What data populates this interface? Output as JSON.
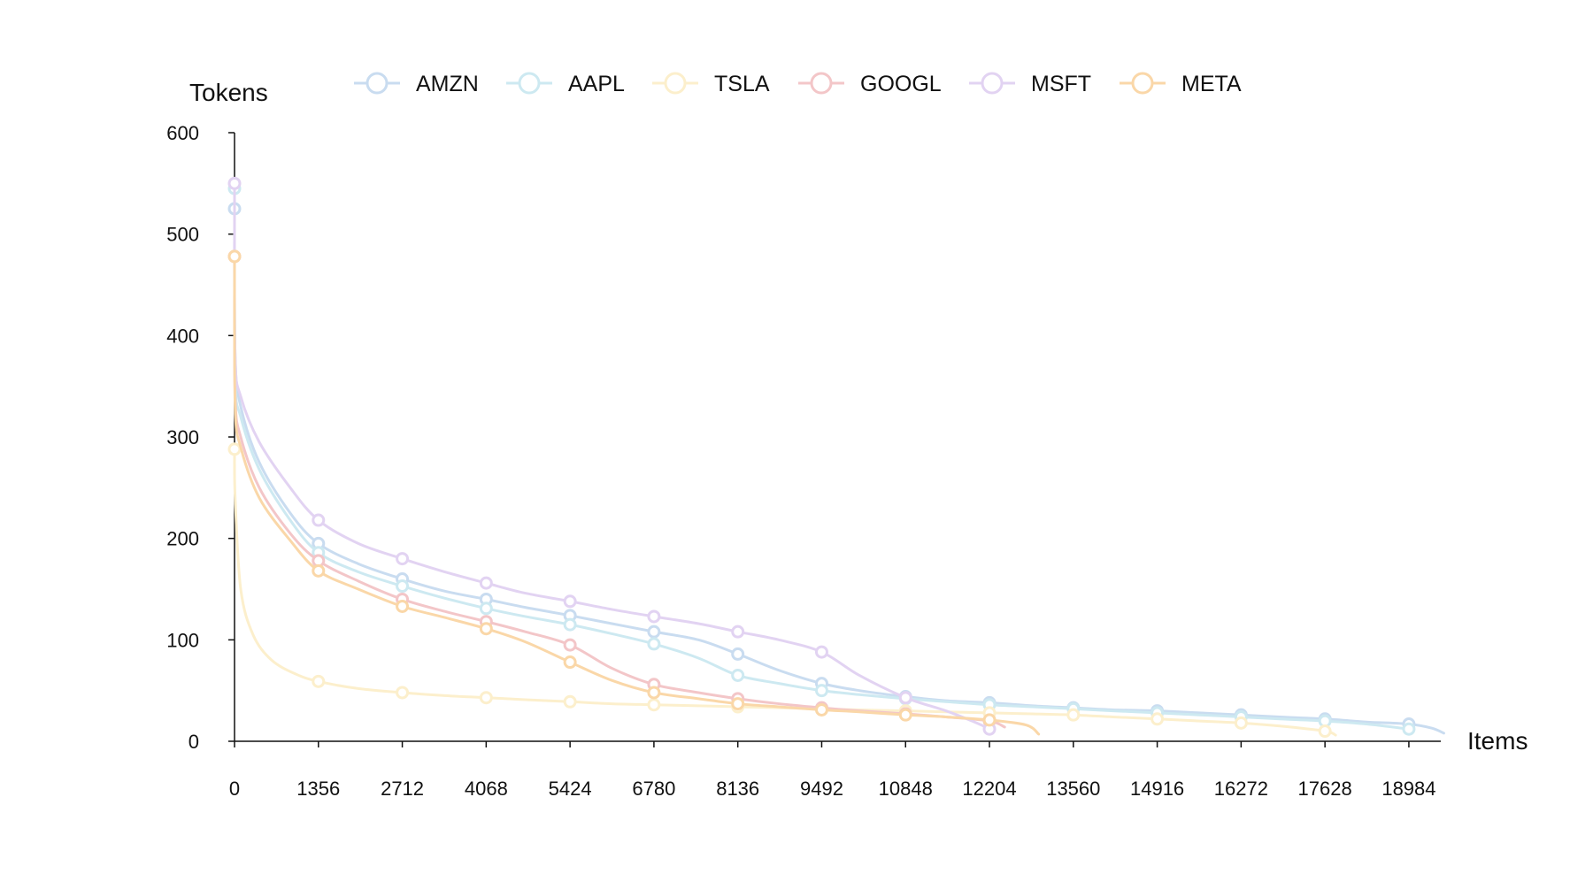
{
  "chart_data": {
    "type": "line",
    "ylabel": "Tokens",
    "xlabel": "Items",
    "xlim": [
      0,
      19500
    ],
    "ylim": [
      0,
      600
    ],
    "x_ticks": [
      "0",
      "1356",
      "2712",
      "4068",
      "5424",
      "6780",
      "8136",
      "9492",
      "10848",
      "12204",
      "13560",
      "14916",
      "16272",
      "17628",
      "18984"
    ],
    "y_ticks": [
      "0",
      "100",
      "200",
      "300",
      "400",
      "500",
      "600"
    ],
    "legend_position": "top",
    "grid": false,
    "series": [
      {
        "name": "AMZN",
        "color": "#c9dcf0",
        "points": [
          [
            0,
            525
          ],
          [
            10,
            380
          ],
          [
            100,
            330
          ],
          [
            400,
            275
          ],
          [
            900,
            225
          ],
          [
            1356,
            195
          ],
          [
            2000,
            175
          ],
          [
            2712,
            160
          ],
          [
            3400,
            148
          ],
          [
            4068,
            140
          ],
          [
            4700,
            132
          ],
          [
            5424,
            124
          ],
          [
            6100,
            116
          ],
          [
            6780,
            108
          ],
          [
            7500,
            100
          ],
          [
            8136,
            86
          ],
          [
            8800,
            70
          ],
          [
            9492,
            57
          ],
          [
            10100,
            50
          ],
          [
            10848,
            44
          ],
          [
            11500,
            40
          ],
          [
            12204,
            38
          ],
          [
            12900,
            35
          ],
          [
            13560,
            33
          ],
          [
            14200,
            31
          ],
          [
            14916,
            30
          ],
          [
            15600,
            28
          ],
          [
            16272,
            26
          ],
          [
            16900,
            24
          ],
          [
            17628,
            22
          ],
          [
            18300,
            19
          ],
          [
            18984,
            17
          ],
          [
            19350,
            13
          ],
          [
            19550,
            8
          ]
        ],
        "markers": [
          [
            0,
            525
          ],
          [
            1356,
            195
          ],
          [
            2712,
            160
          ],
          [
            4068,
            140
          ],
          [
            5424,
            124
          ],
          [
            6780,
            108
          ],
          [
            8136,
            86
          ],
          [
            9492,
            57
          ],
          [
            10848,
            44
          ],
          [
            12204,
            38
          ],
          [
            13560,
            33
          ],
          [
            14916,
            30
          ],
          [
            16272,
            26
          ],
          [
            17628,
            22
          ],
          [
            18984,
            17
          ]
        ]
      },
      {
        "name": "AAPL",
        "color": "#cde9f1",
        "points": [
          [
            0,
            545
          ],
          [
            10,
            360
          ],
          [
            100,
            320
          ],
          [
            400,
            268
          ],
          [
            900,
            218
          ],
          [
            1356,
            186
          ],
          [
            2000,
            167
          ],
          [
            2712,
            153
          ],
          [
            3400,
            141
          ],
          [
            4068,
            131
          ],
          [
            4700,
            123
          ],
          [
            5424,
            115
          ],
          [
            6100,
            106
          ],
          [
            6780,
            96
          ],
          [
            7500,
            82
          ],
          [
            8136,
            65
          ],
          [
            8800,
            57
          ],
          [
            9492,
            50
          ],
          [
            10100,
            46
          ],
          [
            10848,
            42
          ],
          [
            11500,
            39
          ],
          [
            12204,
            36
          ],
          [
            12900,
            34
          ],
          [
            13560,
            32
          ],
          [
            14200,
            30
          ],
          [
            14916,
            28
          ],
          [
            15600,
            26
          ],
          [
            16272,
            24
          ],
          [
            16900,
            22
          ],
          [
            17628,
            20
          ],
          [
            18300,
            17
          ],
          [
            18984,
            12
          ]
        ],
        "markers": [
          [
            0,
            545
          ],
          [
            1356,
            186
          ],
          [
            2712,
            153
          ],
          [
            4068,
            131
          ],
          [
            5424,
            115
          ],
          [
            6780,
            96
          ],
          [
            8136,
            65
          ],
          [
            9492,
            50
          ],
          [
            10848,
            42
          ],
          [
            12204,
            36
          ],
          [
            13560,
            32
          ],
          [
            14916,
            28
          ],
          [
            16272,
            24
          ],
          [
            17628,
            20
          ],
          [
            18984,
            12
          ]
        ]
      },
      {
        "name": "TSLA",
        "color": "#fcefcc",
        "points": [
          [
            0,
            288
          ],
          [
            10,
            240
          ],
          [
            100,
            150
          ],
          [
            300,
            105
          ],
          [
            600,
            80
          ],
          [
            1000,
            66
          ],
          [
            1356,
            59
          ],
          [
            2000,
            52
          ],
          [
            2712,
            48
          ],
          [
            3400,
            45
          ],
          [
            4068,
            43
          ],
          [
            4700,
            41
          ],
          [
            5424,
            39
          ],
          [
            6100,
            37
          ],
          [
            6780,
            36
          ],
          [
            7500,
            35
          ],
          [
            8136,
            34
          ],
          [
            8800,
            33
          ],
          [
            9492,
            32
          ],
          [
            10100,
            31
          ],
          [
            10848,
            30
          ],
          [
            11500,
            29
          ],
          [
            12204,
            28
          ],
          [
            12900,
            27
          ],
          [
            13560,
            26
          ],
          [
            14200,
            24
          ],
          [
            14916,
            22
          ],
          [
            15600,
            20
          ],
          [
            16272,
            18
          ],
          [
            16900,
            15
          ],
          [
            17628,
            10
          ],
          [
            17800,
            6
          ]
        ],
        "markers": [
          [
            0,
            288
          ],
          [
            1356,
            59
          ],
          [
            2712,
            48
          ],
          [
            4068,
            43
          ],
          [
            5424,
            39
          ],
          [
            6780,
            36
          ],
          [
            8136,
            34
          ],
          [
            9492,
            32
          ],
          [
            10848,
            30
          ],
          [
            12204,
            28
          ],
          [
            13560,
            26
          ],
          [
            14916,
            22
          ],
          [
            16272,
            18
          ],
          [
            17628,
            10
          ]
        ]
      },
      {
        "name": "GOOGL",
        "color": "#f3c6c8",
        "points": [
          [
            0,
            478
          ],
          [
            10,
            340
          ],
          [
            100,
            300
          ],
          [
            400,
            250
          ],
          [
            900,
            205
          ],
          [
            1356,
            178
          ],
          [
            2000,
            158
          ],
          [
            2712,
            140
          ],
          [
            3400,
            128
          ],
          [
            4068,
            118
          ],
          [
            4700,
            108
          ],
          [
            5424,
            95
          ],
          [
            6100,
            72
          ],
          [
            6780,
            56
          ],
          [
            7500,
            48
          ],
          [
            8136,
            42
          ],
          [
            8800,
            37
          ],
          [
            9492,
            33
          ],
          [
            10100,
            30
          ],
          [
            10848,
            27
          ],
          [
            11500,
            24
          ],
          [
            12204,
            20
          ],
          [
            12450,
            14
          ]
        ],
        "markers": [
          [
            0,
            478
          ],
          [
            1356,
            178
          ],
          [
            2712,
            140
          ],
          [
            4068,
            118
          ],
          [
            5424,
            95
          ],
          [
            6780,
            56
          ],
          [
            8136,
            42
          ],
          [
            9492,
            33
          ],
          [
            10848,
            27
          ],
          [
            12204,
            20
          ]
        ]
      },
      {
        "name": "MSFT",
        "color": "#e2d3f2",
        "points": [
          [
            0,
            550
          ],
          [
            10,
            380
          ],
          [
            100,
            340
          ],
          [
            400,
            295
          ],
          [
            900,
            250
          ],
          [
            1356,
            218
          ],
          [
            2000,
            195
          ],
          [
            2712,
            180
          ],
          [
            3400,
            167
          ],
          [
            4068,
            156
          ],
          [
            4700,
            146
          ],
          [
            5424,
            138
          ],
          [
            6100,
            130
          ],
          [
            6780,
            123
          ],
          [
            7500,
            116
          ],
          [
            8136,
            108
          ],
          [
            8800,
            100
          ],
          [
            9492,
            88
          ],
          [
            10100,
            65
          ],
          [
            10848,
            43
          ],
          [
            11500,
            30
          ],
          [
            12000,
            18
          ],
          [
            12204,
            12
          ]
        ],
        "markers": [
          [
            0,
            550
          ],
          [
            1356,
            218
          ],
          [
            2712,
            180
          ],
          [
            4068,
            156
          ],
          [
            5424,
            138
          ],
          [
            6780,
            123
          ],
          [
            8136,
            108
          ],
          [
            9492,
            88
          ],
          [
            10848,
            43
          ],
          [
            12204,
            12
          ]
        ]
      },
      {
        "name": "META",
        "color": "#fad7a8",
        "points": [
          [
            0,
            478
          ],
          [
            10,
            330
          ],
          [
            100,
            290
          ],
          [
            400,
            240
          ],
          [
            900,
            198
          ],
          [
            1356,
            168
          ],
          [
            2000,
            150
          ],
          [
            2712,
            133
          ],
          [
            3400,
            122
          ],
          [
            4068,
            111
          ],
          [
            4700,
            98
          ],
          [
            5424,
            78
          ],
          [
            6100,
            60
          ],
          [
            6780,
            48
          ],
          [
            7500,
            42
          ],
          [
            8136,
            37
          ],
          [
            8800,
            34
          ],
          [
            9492,
            31
          ],
          [
            10100,
            29
          ],
          [
            10848,
            26
          ],
          [
            11500,
            24
          ],
          [
            12204,
            21
          ],
          [
            12800,
            16
          ],
          [
            13000,
            7
          ]
        ],
        "markers": [
          [
            0,
            478
          ],
          [
            1356,
            168
          ],
          [
            2712,
            133
          ],
          [
            4068,
            111
          ],
          [
            5424,
            78
          ],
          [
            6780,
            48
          ],
          [
            8136,
            37
          ],
          [
            9492,
            31
          ],
          [
            10848,
            26
          ],
          [
            12204,
            21
          ]
        ]
      }
    ]
  }
}
